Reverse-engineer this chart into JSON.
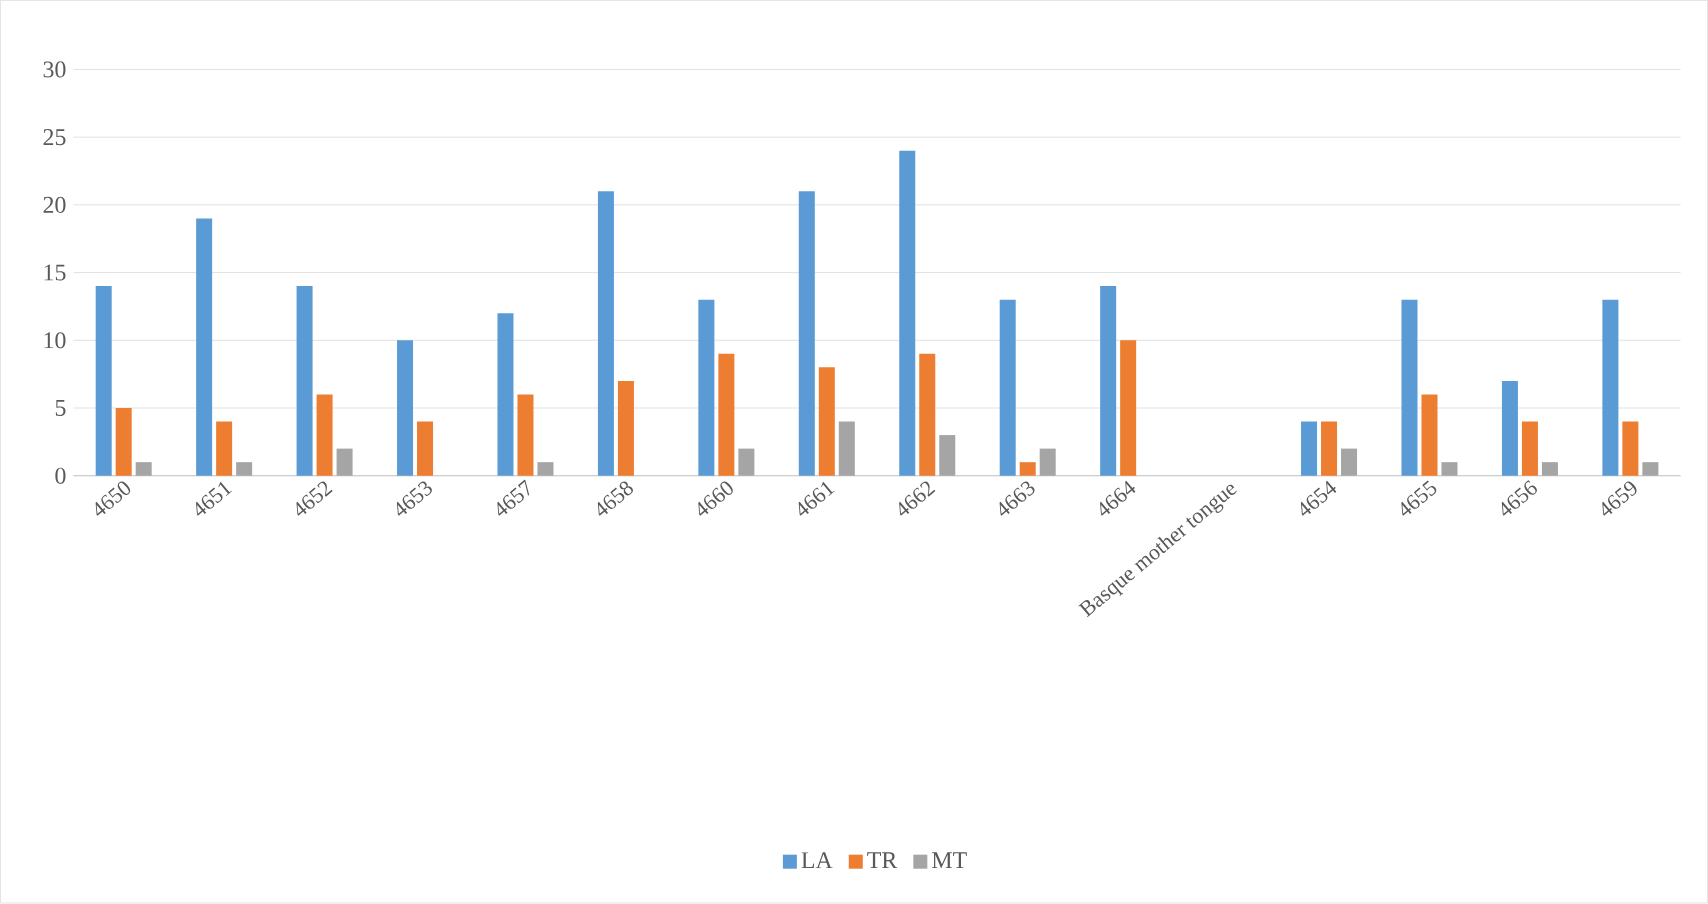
{
  "chart_data": {
    "type": "bar",
    "categories": [
      "4650",
      "4651",
      "4652",
      "4653",
      "4657",
      "4658",
      "4660",
      "4661",
      "4662",
      "4663",
      "4664",
      "Basque mother tongue",
      "4654",
      "4655",
      "4656",
      "4659"
    ],
    "series": [
      {
        "name": "LA",
        "color": "#5b9bd5",
        "values": [
          14,
          19,
          14,
          10,
          12,
          21,
          13,
          21,
          24,
          13,
          14,
          null,
          4,
          13,
          7,
          13
        ]
      },
      {
        "name": "TR",
        "color": "#ed7d31",
        "values": [
          5,
          4,
          6,
          4,
          6,
          7,
          9,
          8,
          9,
          1,
          10,
          null,
          4,
          6,
          4,
          4
        ]
      },
      {
        "name": "MT",
        "color": "#a5a5a5",
        "values": [
          1,
          1,
          2,
          null,
          1,
          null,
          2,
          4,
          3,
          2,
          null,
          null,
          2,
          1,
          1,
          1
        ]
      }
    ],
    "ylim": [
      0,
      30
    ],
    "yticks": [
      0,
      5,
      10,
      15,
      20,
      25,
      30
    ],
    "grid": "y",
    "legend": "bottom"
  }
}
